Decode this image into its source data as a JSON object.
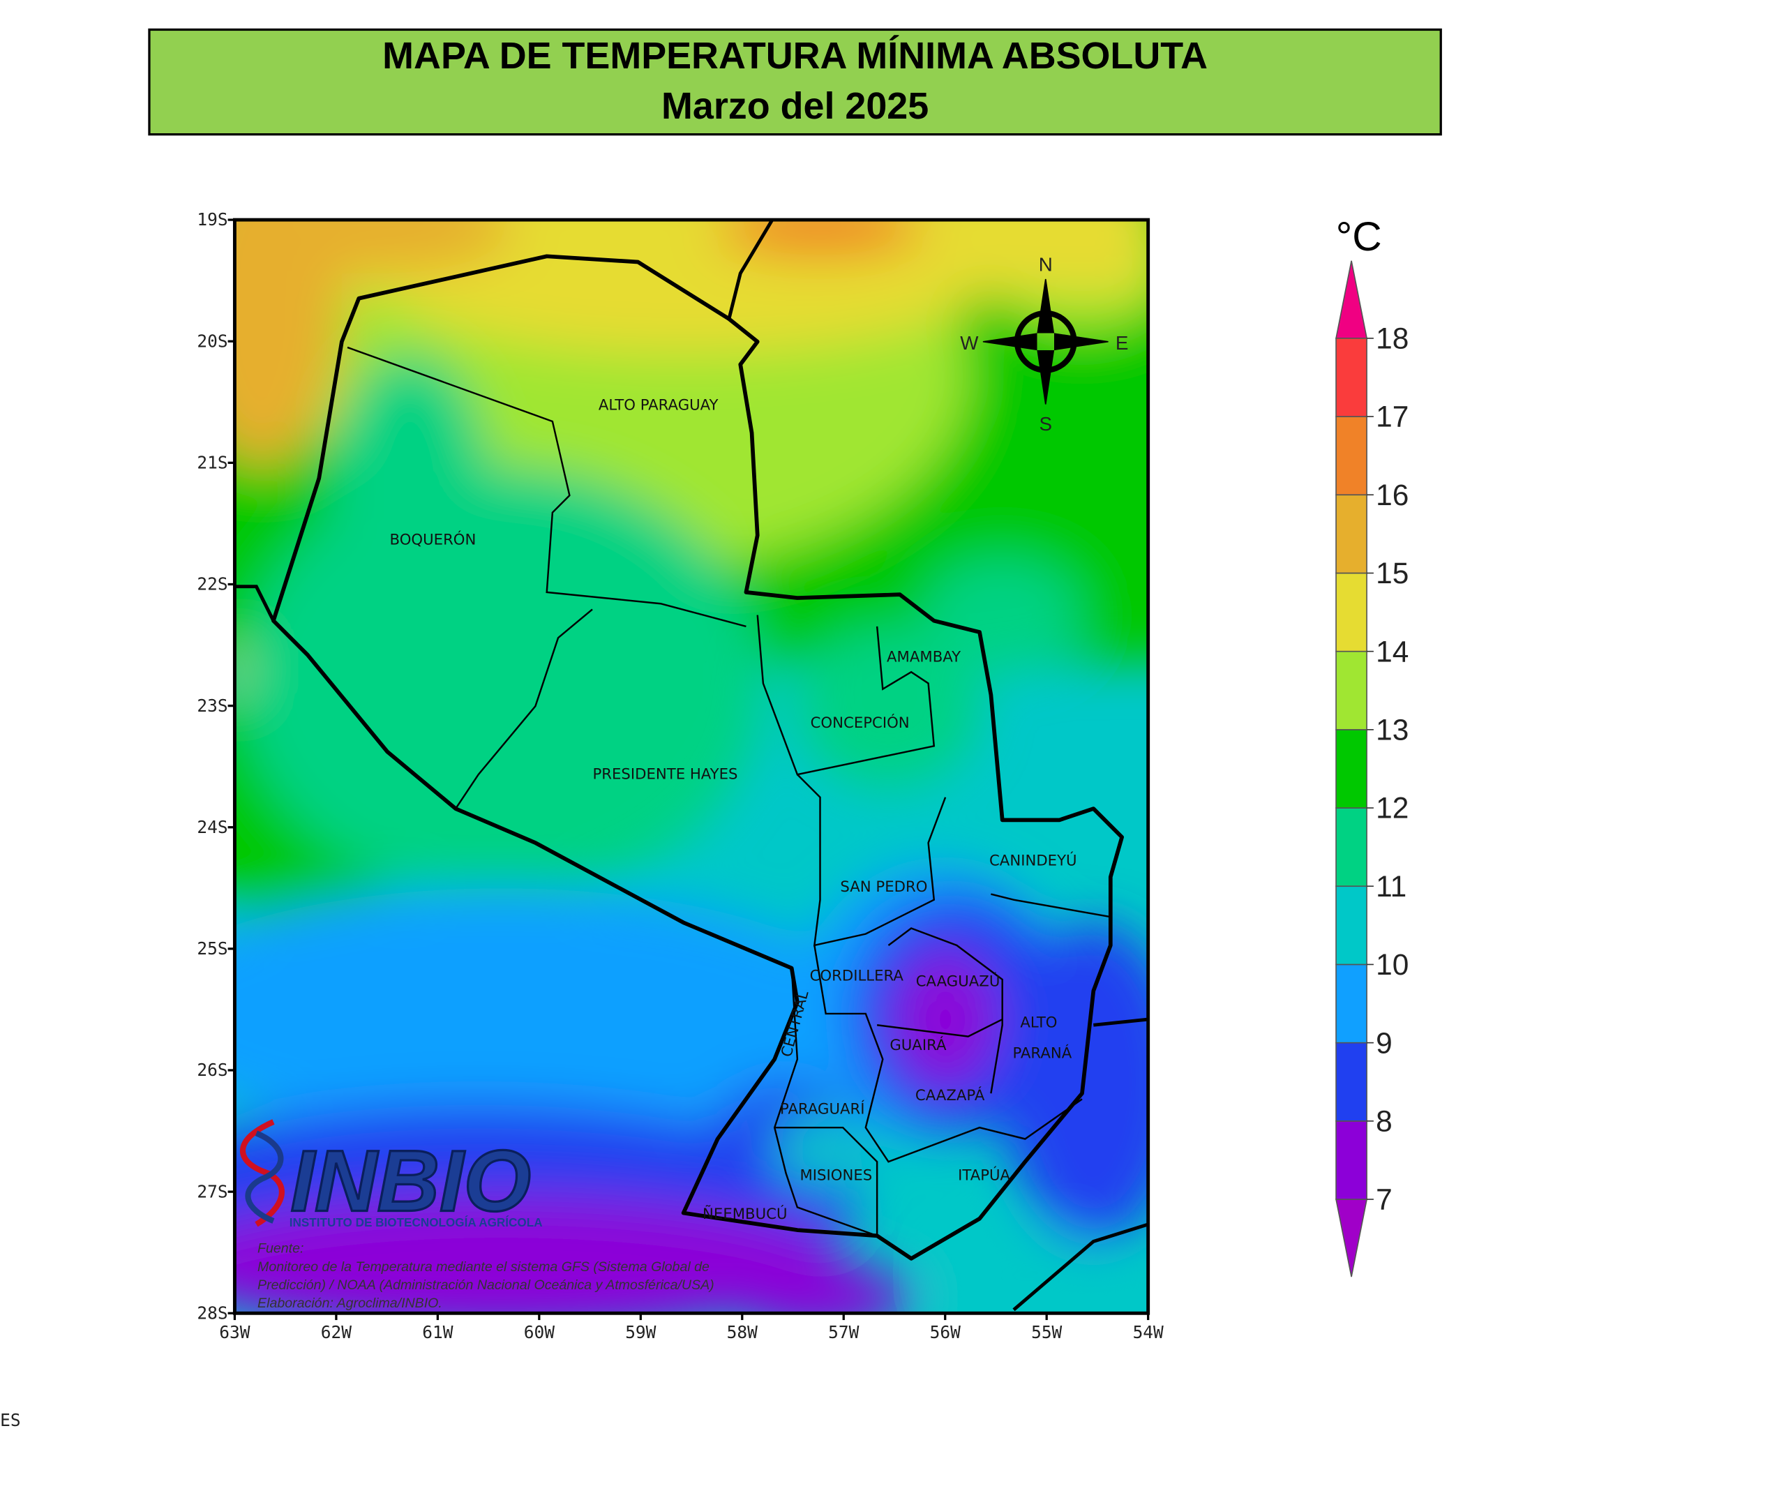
{
  "header": {
    "title": "MAPA DE TEMPERATURA MÍNIMA ABSOLUTA",
    "subtitle": "Marzo del 2025"
  },
  "map": {
    "lat_ticks": [
      "19S",
      "20S",
      "21S",
      "22S",
      "23S",
      "24S",
      "25S",
      "26S",
      "27S",
      "28S"
    ],
    "lon_ticks": [
      "63W",
      "62W",
      "61W",
      "60W",
      "59W",
      "58W",
      "57W",
      "56W",
      "55W",
      "54W"
    ],
    "compass": [
      "N",
      "S",
      "W",
      "E"
    ],
    "departments": [
      "ALTO PARAGUAY",
      "BOQUERÓN",
      "AMAMBAY",
      "CONCEPCIÓN",
      "PRESIDENTE HAYES",
      "CANINDEYÚ",
      "SAN PEDRO",
      "CORDILLERA",
      "CAAGUAZÚ",
      "ALTO",
      "PARANÁ",
      "CENTRAL",
      "GUAIRÁ",
      "CAAZAPÁ",
      "PARAGUARÍ",
      "MISIONES",
      "ITAPÚA",
      "ÑEEMBUCÚ"
    ]
  },
  "legend": {
    "unit": "°C",
    "ticks": [
      "7",
      "8",
      "9",
      "10",
      "11",
      "12",
      "13",
      "14",
      "15",
      "16",
      "17",
      "18"
    ],
    "bin_colors": [
      "#8c00d8",
      "#2040f0",
      "#10a0ff",
      "#00c8c8",
      "#00d283",
      "#00c800",
      "#a0e632",
      "#e6dc32",
      "#e6af2d",
      "#f08228",
      "#fa3c3c"
    ],
    "under_color": "#a000c8",
    "over_color": "#f00082"
  },
  "logo": {
    "name": "INBIO",
    "tagline": "INSTITUTO DE BIOTECNOLOGÍA AGRÍCOLA"
  },
  "source": [
    "Fuente:",
    "Monitoreo de la Temperatura mediante el sistema GFS (Sistema Global de",
    "Predicción) / NOAA (Administración Nacional Oceánica y Atmosférica/USA)",
    "Elaboración: Agroclima/INBIO."
  ],
  "fragment": "ES"
}
